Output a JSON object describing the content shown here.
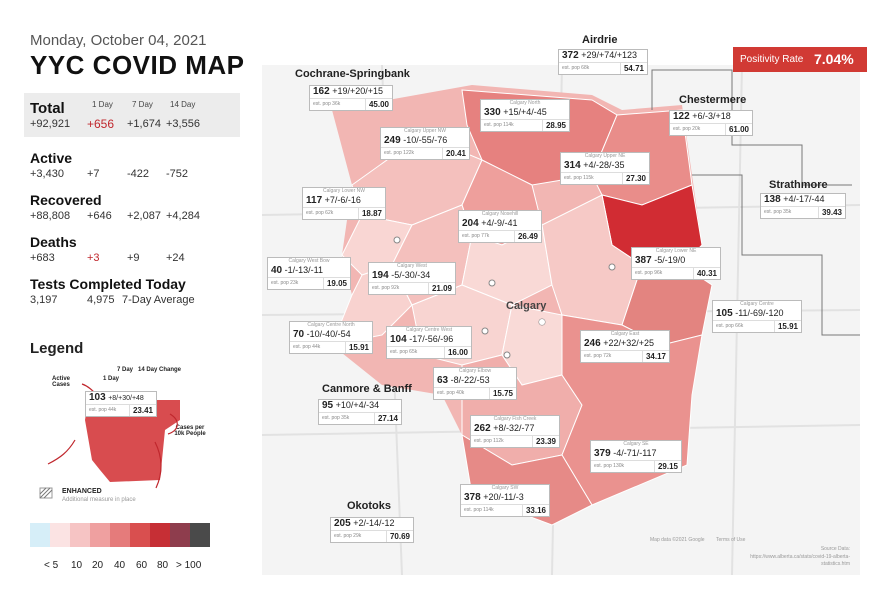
{
  "header": {
    "date": "Monday, October 04, 2021",
    "title": "YYC COVID MAP"
  },
  "stats": {
    "col_1day": "1 Day",
    "col_7day": "7 Day",
    "col_14day": "14 Day",
    "total": {
      "label": "Total",
      "value": "+92,921",
      "d1": "+656",
      "d7": "+1,674",
      "d14": "+3,556"
    },
    "active": {
      "label": "Active",
      "value": "+3,430",
      "d1": "+7",
      "d7": "-422",
      "d14": "-752"
    },
    "recovered": {
      "label": "Recovered",
      "value": "+88,808",
      "d1": "+646",
      "d7": "+2,087",
      "d14": "+4,284"
    },
    "deaths": {
      "label": "Deaths",
      "value": "+683",
      "d1": "+3",
      "d7": "+9",
      "d14": "+24"
    },
    "tests": {
      "label": "Tests Completed Today",
      "value": "3,197",
      "avg": "4,975",
      "avg_label": "7-Day Average"
    }
  },
  "legend": {
    "title": "Legend",
    "lbl_7day": "7 Day",
    "lbl_14day": "14 Day Change",
    "lbl_1day": "1 Day",
    "lbl_active": "Active Cases",
    "lbl_cases_per": "Cases per 10k People",
    "sample_cases": "103",
    "sample_changes": "+8/+30/+48",
    "sample_pop": "est. pop 44k",
    "sample_rate": "23.41",
    "enhanced": "ENHANCED",
    "enhanced_sub": "Additional measure in place",
    "scale_colors": [
      "#d6eef8",
      "#fbe3e3",
      "#f6c4c4",
      "#efa0a0",
      "#e57b7b",
      "#d94f4f",
      "#c62f35",
      "#8e3d4d",
      "#4a4a4a"
    ],
    "scale_labels": [
      "< 5",
      "10",
      "20",
      "40",
      "60",
      "80",
      "> 100"
    ]
  },
  "positivity": {
    "label": "Positivity Rate",
    "value": "7.04%"
  },
  "map_labels": {
    "calgary": "Calgary",
    "airdrie": "Airdrie",
    "cochrane": "Cochrane-Springbank",
    "chestermere": "Chestermere",
    "strathmore": "Strathmore",
    "canmore": "Canmore & Banff",
    "okotoks": "Okotoks"
  },
  "regions": [
    {
      "id": "airdrie",
      "name": "",
      "cases": "372",
      "changes": "+29/+74/+123",
      "pop": "est. pop 68k",
      "rate": "54.71"
    },
    {
      "id": "cochrane",
      "name": "",
      "cases": "162",
      "changes": "+19/+20/+15",
      "pop": "est. pop 36k",
      "rate": "45.00"
    },
    {
      "id": "north",
      "name": "Calgary North",
      "cases": "330",
      "changes": "+15/+4/-45",
      "pop": "est. pop 114k",
      "rate": "28.95"
    },
    {
      "id": "chestermere",
      "name": "",
      "cases": "122",
      "changes": "+6/-3/+18",
      "pop": "est. pop 20k",
      "rate": "61.00"
    },
    {
      "id": "uppernw",
      "name": "Calgary Upper NW",
      "cases": "249",
      "changes": "-10/-55/-76",
      "pop": "est. pop 122k",
      "rate": "20.41"
    },
    {
      "id": "upperne",
      "name": "Calgary Upper NE",
      "cases": "314",
      "changes": "+4/-28/-35",
      "pop": "est. pop 115k",
      "rate": "27.30"
    },
    {
      "id": "strathmore",
      "name": "",
      "cases": "138",
      "changes": "+4/-17/-44",
      "pop": "est. pop 35k",
      "rate": "39.43"
    },
    {
      "id": "lowernw",
      "name": "Calgary Lower NW",
      "cases": "117",
      "changes": "+7/-6/-16",
      "pop": "est. pop 62k",
      "rate": "18.87"
    },
    {
      "id": "nosehill",
      "name": "Calgary Nosehill",
      "cases": "204",
      "changes": "+4/-9/-41",
      "pop": "est. pop 77k",
      "rate": "26.49"
    },
    {
      "id": "lowerne",
      "name": "Calgary Lower NE",
      "cases": "387",
      "changes": "-5/-19/0",
      "pop": "est. pop 96k",
      "rate": "40.31"
    },
    {
      "id": "westbow",
      "name": "Calgary West Bow",
      "cases": "40",
      "changes": "-1/-13/-11",
      "pop": "est. pop 23k",
      "rate": "19.05"
    },
    {
      "id": "west",
      "name": "Calgary West",
      "cases": "194",
      "changes": "-5/-30/-34",
      "pop": "est. pop 92k",
      "rate": "21.09"
    },
    {
      "id": "centre",
      "name": "Calgary Centre",
      "cases": "105",
      "changes": "-11/-69/-120",
      "pop": "est. pop 66k",
      "rate": "15.91"
    },
    {
      "id": "centrenorth",
      "name": "Calgary Centre North",
      "cases": "70",
      "changes": "-10/-40/-54",
      "pop": "est. pop 44k",
      "rate": "15.91"
    },
    {
      "id": "centrewest",
      "name": "Calgary Centre West",
      "cases": "104",
      "changes": "-17/-56/-96",
      "pop": "est. pop 65k",
      "rate": "16.00"
    },
    {
      "id": "east",
      "name": "Calgary East",
      "cases": "246",
      "changes": "+22/+32/+25",
      "pop": "est. pop 72k",
      "rate": "34.17"
    },
    {
      "id": "elbow",
      "name": "Calgary Elbow",
      "cases": "63",
      "changes": "-8/-22/-53",
      "pop": "est. pop 40k",
      "rate": "15.75"
    },
    {
      "id": "canmore",
      "name": "",
      "cases": "95",
      "changes": "+10/+4/-34",
      "pop": "est. pop 35k",
      "rate": "27.14"
    },
    {
      "id": "fishcreek",
      "name": "Calgary Fish Creek",
      "cases": "262",
      "changes": "+8/-32/-77",
      "pop": "est. pop 112k",
      "rate": "23.39"
    },
    {
      "id": "se",
      "name": "Calgary SE",
      "cases": "379",
      "changes": "-4/-71/-117",
      "pop": "est. pop 130k",
      "rate": "29.15"
    },
    {
      "id": "sw",
      "name": "Calgary SW",
      "cases": "378",
      "changes": "+20/-11/-3",
      "pop": "est. pop 114k",
      "rate": "33.16"
    },
    {
      "id": "okotoks",
      "name": "",
      "cases": "205",
      "changes": "+2/-14/-12",
      "pop": "est. pop 29k",
      "rate": "70.69"
    }
  ],
  "footer": {
    "source": "Source Data:",
    "source_url": "https://www.alberta.ca/stats/covid-19-alberta-statistics.htm",
    "map_credit": "Map data ©2021 Google",
    "terms": "Terms of Use"
  }
}
